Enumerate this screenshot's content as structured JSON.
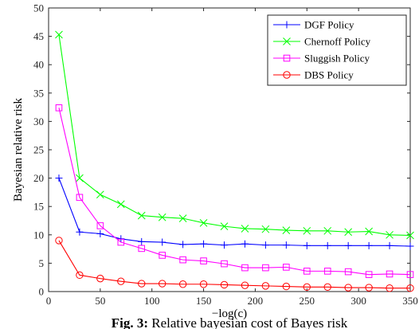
{
  "chart_data": {
    "type": "line",
    "x": [
      10,
      30,
      50,
      70,
      90,
      110,
      130,
      150,
      170,
      190,
      210,
      230,
      250,
      270,
      290,
      310,
      330,
      350
    ],
    "xlim": [
      0,
      350
    ],
    "ylim": [
      0,
      50
    ],
    "xticks": [
      0,
      50,
      100,
      150,
      200,
      250,
      300,
      350
    ],
    "yticks": [
      0,
      5,
      10,
      15,
      20,
      25,
      30,
      35,
      40,
      45,
      50
    ],
    "ylabel": "Bayesian relative risk",
    "xlabel": "−log(c)",
    "grid": false,
    "legend_position": "top-right",
    "series": [
      {
        "name": "DGF Policy",
        "color": "#0000ff",
        "marker": "plus",
        "values": [
          20,
          10.5,
          10.2,
          9.3,
          8.8,
          8.7,
          8.3,
          8.4,
          8.2,
          8.4,
          8.2,
          8.2,
          8.1,
          8.1,
          8.1,
          8.1,
          8.1,
          8.0
        ]
      },
      {
        "name": "Chernoff Policy",
        "color": "#00ff00",
        "marker": "x",
        "values": [
          45.3,
          20.0,
          17.1,
          15.4,
          13.4,
          13.1,
          12.9,
          12.1,
          11.5,
          11.1,
          11.0,
          10.8,
          10.7,
          10.7,
          10.5,
          10.6,
          10.0,
          9.9
        ]
      },
      {
        "name": "Sluggish Policy",
        "color": "#ff00ff",
        "marker": "square",
        "values": [
          32.4,
          16.6,
          11.6,
          8.7,
          7.6,
          6.4,
          5.6,
          5.4,
          4.9,
          4.2,
          4.2,
          4.3,
          3.6,
          3.6,
          3.5,
          3.0,
          3.1,
          3.0
        ]
      },
      {
        "name": "DBS Policy",
        "color": "#ff0000",
        "marker": "circle",
        "values": [
          9.0,
          2.9,
          2.3,
          1.8,
          1.4,
          1.4,
          1.3,
          1.3,
          1.2,
          1.1,
          1.0,
          0.9,
          0.8,
          0.8,
          0.7,
          0.7,
          0.6,
          0.6
        ]
      }
    ]
  },
  "caption": {
    "label": "Fig. 3:",
    "text": "Relative bayesian cost of Bayes risk"
  }
}
